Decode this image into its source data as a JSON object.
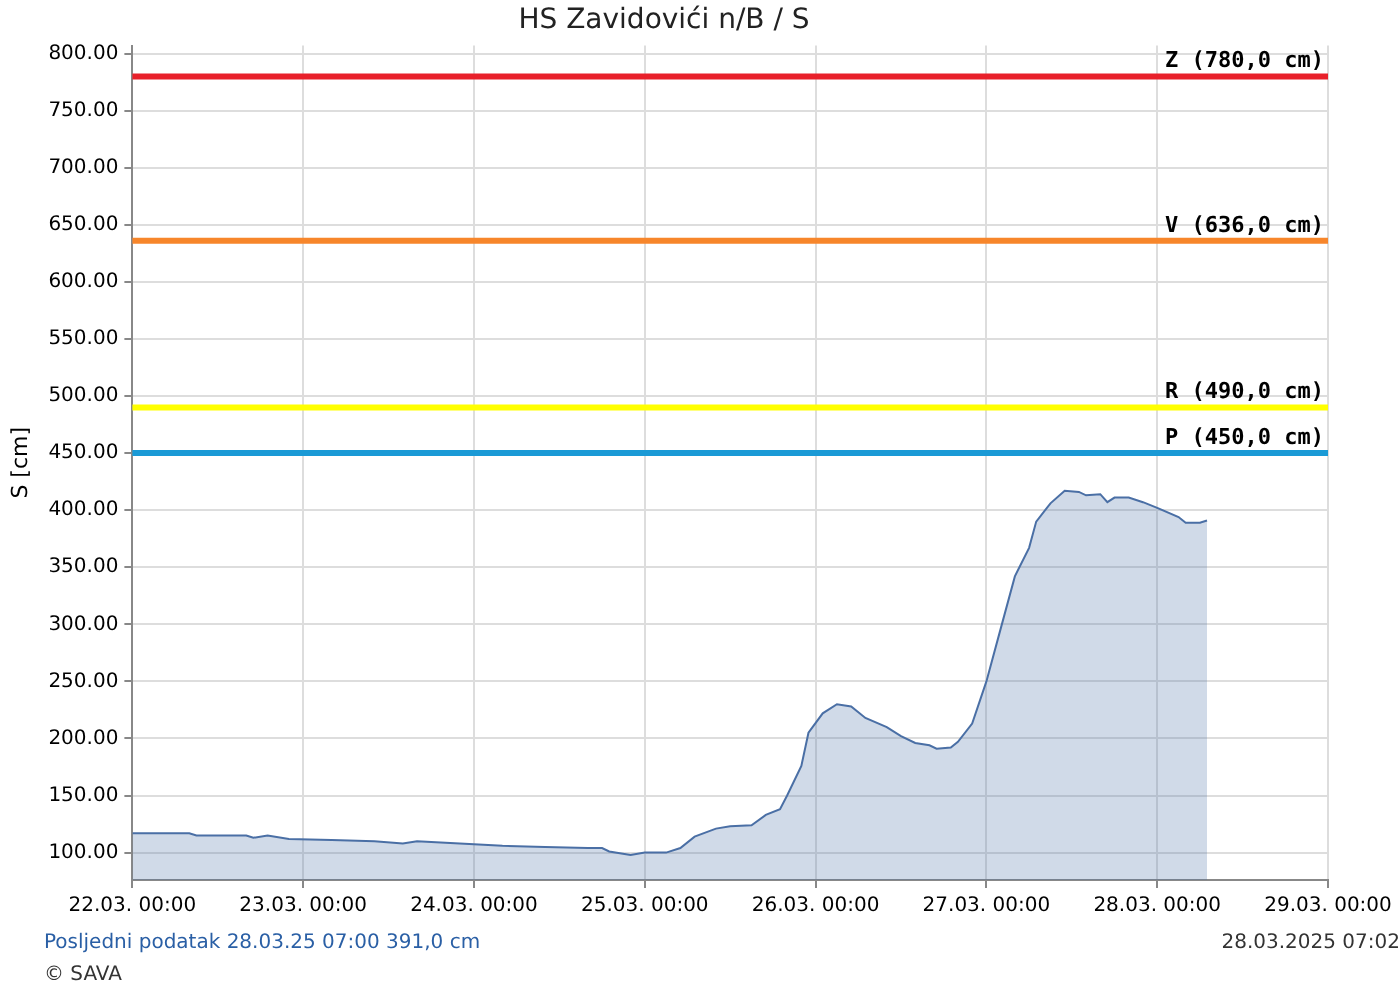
{
  "chart_data": {
    "type": "area",
    "title": "HS Zavidovići n/B / S",
    "ylabel": "S [cm]",
    "x": [
      "2025-03-22T00:00",
      "2025-03-22T08:00",
      "2025-03-22T09:00",
      "2025-03-22T16:00",
      "2025-03-22T17:00",
      "2025-03-22T19:00",
      "2025-03-22T22:00",
      "2025-03-23T04:00",
      "2025-03-23T10:00",
      "2025-03-23T14:00",
      "2025-03-23T16:00",
      "2025-03-23T22:00",
      "2025-03-24T04:00",
      "2025-03-24T10:00",
      "2025-03-24T16:00",
      "2025-03-24T18:00",
      "2025-03-24T19:00",
      "2025-03-24T22:00",
      "2025-03-25T00:00",
      "2025-03-25T03:00",
      "2025-03-25T05:00",
      "2025-03-25T07:00",
      "2025-03-25T10:00",
      "2025-03-25T12:00",
      "2025-03-25T15:00",
      "2025-03-25T17:00",
      "2025-03-25T19:00",
      "2025-03-25T20:00",
      "2025-03-25T22:00",
      "2025-03-25T23:00",
      "2025-03-26T01:00",
      "2025-03-26T03:00",
      "2025-03-26T05:00",
      "2025-03-26T07:00",
      "2025-03-26T10:00",
      "2025-03-26T12:00",
      "2025-03-26T14:00",
      "2025-03-26T16:00",
      "2025-03-26T17:00",
      "2025-03-26T19:00",
      "2025-03-26T20:00",
      "2025-03-26T22:00",
      "2025-03-27T00:00",
      "2025-03-27T02:00",
      "2025-03-27T04:00",
      "2025-03-27T06:00",
      "2025-03-27T07:00",
      "2025-03-27T09:00",
      "2025-03-27T11:00",
      "2025-03-27T13:00",
      "2025-03-27T14:00",
      "2025-03-27T16:00",
      "2025-03-27T17:00",
      "2025-03-27T18:00",
      "2025-03-27T20:00",
      "2025-03-27T22:00",
      "2025-03-28T00:00",
      "2025-03-28T03:00",
      "2025-03-28T04:00",
      "2025-03-28T06:00",
      "2025-03-28T07:00"
    ],
    "series": [
      {
        "color": "#4a6fa5",
        "values": [
          117,
          117,
          115,
          115,
          113,
          115,
          112,
          111,
          110,
          108,
          110,
          108,
          106,
          105,
          104,
          104,
          101,
          98,
          100,
          100,
          104,
          114,
          121,
          123,
          124,
          133,
          138,
          150,
          176,
          205,
          222,
          230,
          228,
          218,
          210,
          202,
          196,
          194,
          191,
          192,
          197,
          213,
          250,
          296,
          342,
          367,
          390,
          406,
          417,
          416,
          413,
          414,
          407,
          411,
          411,
          407,
          402,
          394,
          389,
          389,
          391
        ]
      }
    ],
    "xlim": [
      "2025-03-22T00:00",
      "2025-03-29T00:00"
    ],
    "xticks": [
      {
        "value": "2025-03-22T00:00",
        "label": "22.03. 00:00"
      },
      {
        "value": "2025-03-23T00:00",
        "label": "23.03. 00:00"
      },
      {
        "value": "2025-03-24T00:00",
        "label": "24.03. 00:00"
      },
      {
        "value": "2025-03-25T00:00",
        "label": "25.03. 00:00"
      },
      {
        "value": "2025-03-26T00:00",
        "label": "26.03. 00:00"
      },
      {
        "value": "2025-03-27T00:00",
        "label": "27.03. 00:00"
      },
      {
        "value": "2025-03-28T00:00",
        "label": "28.03. 00:00"
      },
      {
        "value": "2025-03-29T00:00",
        "label": "29.03. 00:00"
      }
    ],
    "ylim": [
      76,
      807
    ],
    "yticks": [
      {
        "value": 100,
        "label": "100.00"
      },
      {
        "value": 150,
        "label": "150.00"
      },
      {
        "value": 200,
        "label": "200.00"
      },
      {
        "value": 250,
        "label": "250.00"
      },
      {
        "value": 300,
        "label": "300.00"
      },
      {
        "value": 350,
        "label": "350.00"
      },
      {
        "value": 400,
        "label": "400.00"
      },
      {
        "value": 450,
        "label": "450.00"
      },
      {
        "value": 500,
        "label": "500.00"
      },
      {
        "value": 550,
        "label": "550.00"
      },
      {
        "value": 600,
        "label": "600.00"
      },
      {
        "value": 650,
        "label": "650.00"
      },
      {
        "value": 700,
        "label": "700.00"
      },
      {
        "value": 750,
        "label": "750.00"
      },
      {
        "value": 800,
        "label": "800.00"
      }
    ],
    "ref_lines": [
      {
        "axis": "y",
        "value": 780,
        "label": "Z (780,0 cm)",
        "color": "#e8202a"
      },
      {
        "axis": "y",
        "value": 636,
        "label": "V (636,0 cm)",
        "color": "#f7862b"
      },
      {
        "axis": "y",
        "value": 490,
        "label": "R (490,0 cm)",
        "color": "#ffff00"
      },
      {
        "axis": "y",
        "value": 450,
        "label": "P (450,0 cm)",
        "color": "#1a9ad6"
      }
    ],
    "grid": true,
    "legend": false,
    "annotations": [
      "Posljedni podatak 28.03.25 07:00  391,0 cm",
      "28.03.2025 07:02",
      "© SAVA"
    ]
  }
}
